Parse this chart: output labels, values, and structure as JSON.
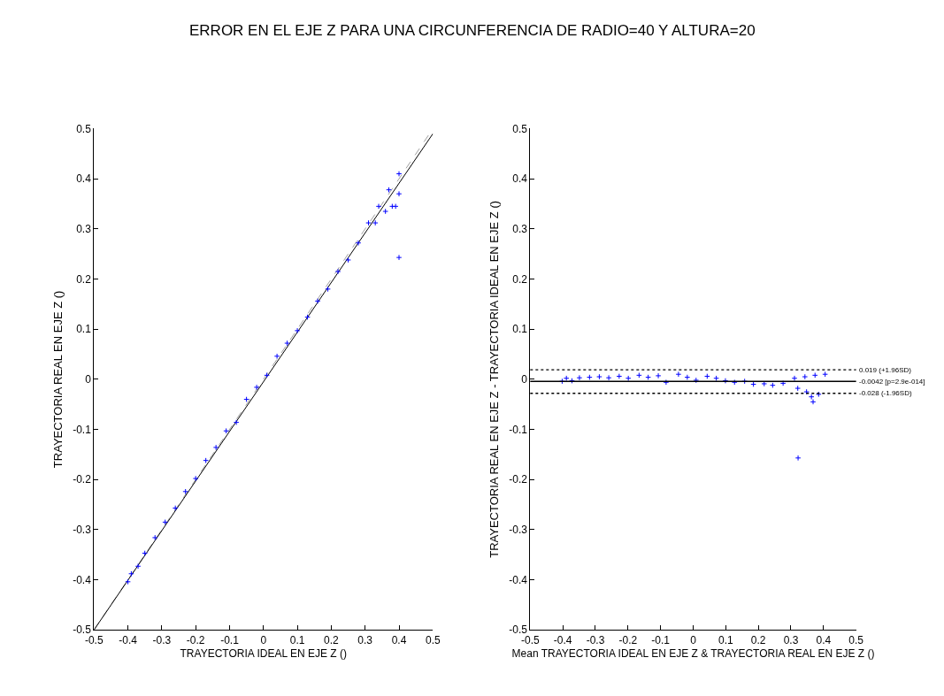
{
  "chart_data": [
    {
      "type": "scatter",
      "title": "ERROR EN EL EJE Z PARA UNA CIRCUNFERENCIA DE RADIO=40 Y ALTURA=20",
      "xlabel": "TRAYECTORIA IDEAL EN EJE Z ()",
      "ylabel": "TRAYECTORIA REAL EN EJE Z ()",
      "xlim": [
        -0.5,
        0.5
      ],
      "ylim": [
        -0.5,
        0.5
      ],
      "xticks": [
        -0.5,
        -0.4,
        -0.3,
        -0.2,
        -0.1,
        0,
        0.1,
        0.2,
        0.3,
        0.4,
        0.5
      ],
      "yticks": [
        -0.5,
        -0.4,
        -0.3,
        -0.2,
        -0.1,
        0,
        0.1,
        0.2,
        0.3,
        0.4,
        0.5
      ],
      "marker": "cross",
      "series": [
        {
          "type": "line",
          "color": "#a0a0a0",
          "line_style": "dashed",
          "marker": "none",
          "x": [
            -0.5,
            0.5
          ],
          "values": [
            -0.5,
            0.5
          ]
        },
        {
          "type": "line",
          "color": "#000000",
          "line_style": "solid",
          "marker": "none",
          "x": [
            -0.5,
            0.5
          ],
          "values": [
            -0.5,
            0.49
          ]
        },
        {
          "color": "#0000ff",
          "x": [
            -0.4,
            -0.39,
            -0.37,
            -0.35,
            -0.32,
            -0.29,
            -0.26,
            -0.23,
            -0.2,
            -0.17,
            -0.14,
            -0.11,
            -0.08,
            -0.05,
            -0.02,
            0.01,
            0.04,
            0.07,
            0.1,
            0.13,
            0.16,
            0.19,
            0.22,
            0.25,
            0.28,
            0.31,
            0.34,
            0.37,
            0.4,
            0.33,
            0.36,
            0.38,
            0.39,
            0.4,
            0.4
          ],
          "values": [
            -0.404,
            -0.388,
            -0.373,
            -0.347,
            -0.316,
            -0.285,
            -0.257,
            -0.224,
            -0.198,
            -0.162,
            -0.136,
            -0.103,
            -0.086,
            -0.04,
            -0.016,
            0.008,
            0.046,
            0.072,
            0.097,
            0.124,
            0.156,
            0.18,
            0.215,
            0.238,
            0.272,
            0.312,
            0.345,
            0.378,
            0.41,
            0.312,
            0.335,
            0.345,
            0.345,
            0.37,
            0.243
          ]
        }
      ]
    },
    {
      "type": "scatter",
      "xlabel": "Mean TRAYECTORIA IDEAL EN EJE Z & TRAYECTORIA REAL EN EJE Z ()",
      "ylabel": "TRAYECTORIA REAL EN EJE Z - TRAYECTORIA IDEAL EN EJE Z ()",
      "xlim": [
        -0.5,
        0.5
      ],
      "ylim": [
        -0.5,
        0.5
      ],
      "xticks": [
        -0.5,
        -0.4,
        -0.3,
        -0.2,
        -0.1,
        0,
        0.1,
        0.2,
        0.3,
        0.4,
        0.5
      ],
      "yticks": [
        -0.5,
        -0.4,
        -0.3,
        -0.2,
        -0.1,
        0,
        0.1,
        0.2,
        0.3,
        0.4,
        0.5
      ],
      "marker": "cross",
      "series": [
        {
          "color": "#0000ff",
          "x": [
            -0.402,
            -0.389,
            -0.372,
            -0.349,
            -0.318,
            -0.288,
            -0.259,
            -0.227,
            -0.199,
            -0.166,
            -0.138,
            -0.107,
            -0.083,
            -0.045,
            -0.018,
            0.009,
            0.043,
            0.071,
            0.099,
            0.127,
            0.158,
            0.185,
            0.218,
            0.244,
            0.276,
            0.311,
            0.343,
            0.374,
            0.405,
            0.321,
            0.348,
            0.363,
            0.368,
            0.385,
            0.322
          ],
          "values": [
            -0.004,
            0.002,
            -0.003,
            0.003,
            0.004,
            0.005,
            0.003,
            0.006,
            0.002,
            0.008,
            0.004,
            0.007,
            -0.006,
            0.01,
            0.004,
            -0.002,
            0.006,
            0.002,
            -0.003,
            -0.006,
            -0.004,
            -0.01,
            -0.009,
            -0.012,
            -0.008,
            0.002,
            0.005,
            0.008,
            0.01,
            -0.018,
            -0.025,
            -0.035,
            -0.045,
            -0.03,
            -0.157
          ]
        }
      ],
      "ref_lines": [
        {
          "axis": "y",
          "value": 0.019,
          "label": "0.019 (+1.96SD)",
          "color": "#000000",
          "line_style": "dotted"
        },
        {
          "axis": "y",
          "value": -0.0042,
          "label": "-0.0042 [p=2.9e-014]",
          "color": "#000000",
          "line_style": "solid"
        },
        {
          "axis": "y",
          "value": -0.028,
          "label": "-0.028 (-1.96SD)",
          "color": "#000000",
          "line_style": "dotted"
        }
      ]
    }
  ]
}
